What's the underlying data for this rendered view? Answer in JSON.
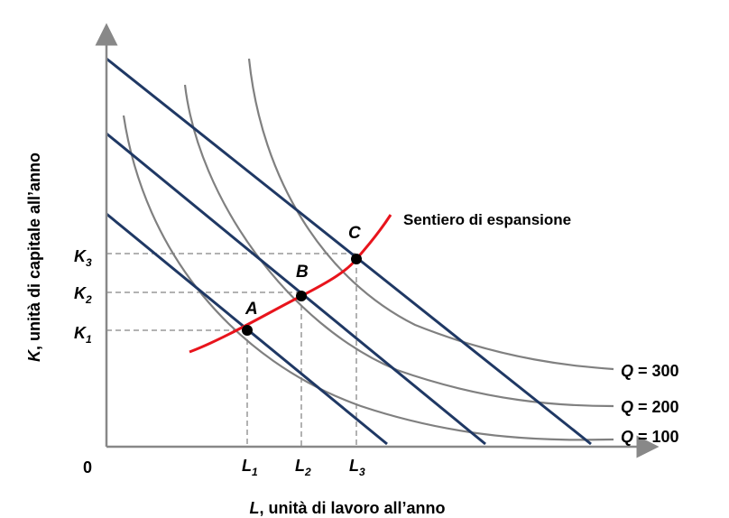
{
  "diagram": {
    "y_axis_label": {
      "var": "K",
      "rest": ", unità di capitale all’anno"
    },
    "x_axis_label": {
      "var": "L",
      "rest": ", unità di lavoro all’anno"
    },
    "origin": "0",
    "y_ticks": [
      {
        "main": "K",
        "sub": "3"
      },
      {
        "main": "K",
        "sub": "2"
      },
      {
        "main": "K",
        "sub": "1"
      }
    ],
    "x_ticks": [
      {
        "main": "L",
        "sub": "1"
      },
      {
        "main": "L",
        "sub": "2"
      },
      {
        "main": "L",
        "sub": "3"
      }
    ],
    "points": [
      "A",
      "B",
      "C"
    ],
    "expansion_path_label": "Sentiero di espansione",
    "isoquants": [
      {
        "var": "Q",
        "value": " = 300"
      },
      {
        "var": "Q",
        "value": " = 200"
      },
      {
        "var": "Q",
        "value": " = 100"
      }
    ],
    "colors": {
      "isocost": "#1f3864",
      "isoquant": "#808080",
      "expansion_path": "#e8141c",
      "axis": "#888888",
      "guides": "#999999"
    }
  }
}
